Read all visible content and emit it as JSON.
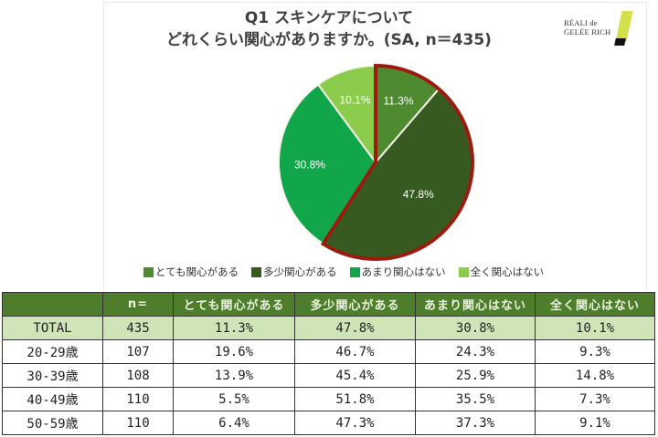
{
  "title": {
    "line1": "Q1 スキンケアについて",
    "line2": "どれくらい関心がありますか。(SA, n＝435)"
  },
  "logo": {
    "line1": "RÉALI de",
    "line2": "GELÉE RICH"
  },
  "chart_data": {
    "type": "pie",
    "title": "Q1 スキンケアについて どれくらい関心がありますか。(SA, n＝435)",
    "categories": [
      "とても関心がある",
      "多少関心がある",
      "あまり関心はない",
      "全く関心はない"
    ],
    "values": [
      11.3,
      47.8,
      30.8,
      10.1
    ],
    "labels": [
      "11.3%",
      "47.8%",
      "30.8%",
      "10.1%"
    ],
    "colors": [
      "#4e8a2f",
      "#375a21",
      "#12a64a",
      "#8ccc4c"
    ],
    "highlight": {
      "slices": [
        "とても関心がある",
        "多少関心がある"
      ],
      "border_color": "#9b1c0e"
    },
    "legend_position": "bottom",
    "n": 435
  },
  "legend": [
    {
      "label": "とても関心がある",
      "color": "#4e8a2f"
    },
    {
      "label": "多少関心がある",
      "color": "#375a21"
    },
    {
      "label": "あまり関心はない",
      "color": "#12a64a"
    },
    {
      "label": "全く関心はない",
      "color": "#8ccc4c"
    }
  ],
  "table": {
    "headers": [
      "",
      "n=",
      "とても関心がある",
      "多少関心がある",
      "あまり関心はない",
      "全く関心はない"
    ],
    "rows": [
      [
        "TOTAL",
        "435",
        "11.3%",
        "47.8%",
        "30.8%",
        "10.1%"
      ],
      [
        "20-29歳",
        "107",
        "19.6%",
        "46.7%",
        "24.3%",
        "9.3%"
      ],
      [
        "30-39歳",
        "108",
        "13.9%",
        "45.4%",
        "25.9%",
        "14.8%"
      ],
      [
        "40-49歳",
        "110",
        "5.5%",
        "51.8%",
        "35.5%",
        "7.3%"
      ],
      [
        "50-59歳",
        "110",
        "6.4%",
        "47.3%",
        "37.3%",
        "9.1%"
      ]
    ]
  }
}
